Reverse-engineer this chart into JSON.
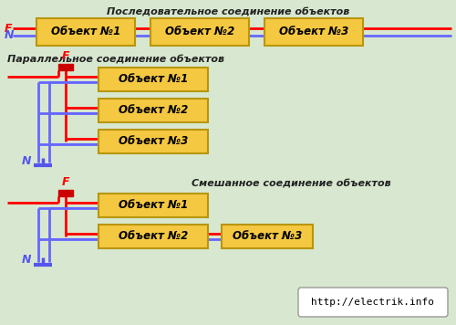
{
  "bg_color": "#d8e8d0",
  "box_color": "#f5c842",
  "box_edge_color": "#b8960a",
  "red_color": "#ff0000",
  "blue_color": "#6666ff",
  "text_color": "#000000",
  "fuse_color": "#cc0000",
  "n_color": "#5555ee",
  "url_text": "http://electrik.info",
  "title1": "Последовательное соединение объектов",
  "title2": "Параллельное соединение объектов",
  "title3": "Смешанное соединение объектов",
  "box_label1": "Объект №1",
  "box_label2": "Объект №2",
  "box_label3": "Объект №3"
}
